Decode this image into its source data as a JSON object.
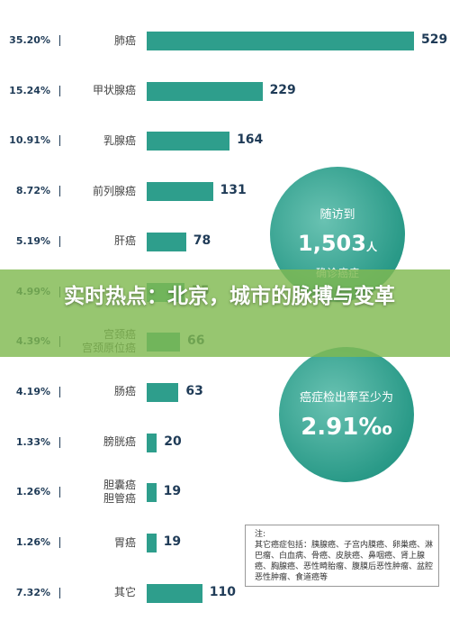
{
  "chart_data": {
    "type": "bar",
    "categories": [
      "肺癌",
      "甲状腺癌",
      "乳腺癌",
      "前列腺癌",
      "肝癌",
      null,
      "宫颈癌\n宫颈原位癌",
      "肠癌",
      "膀胱癌",
      "胆囊癌\n胆管癌",
      "胃癌",
      "其它"
    ],
    "share_labels": [
      "35.20%",
      "15.24%",
      "10.91%",
      "8.72%",
      "5.19%",
      "4.99%",
      "4.39%",
      "4.19%",
      "1.33%",
      "1.26%",
      "1.26%",
      "7.32%"
    ],
    "values": [
      529,
      229,
      164,
      131,
      78,
      75,
      66,
      63,
      20,
      19,
      19,
      110
    ],
    "color": "#2e9e8c"
  },
  "circles": [
    {
      "caption": "随访到",
      "figure": "1,503",
      "unit": "人",
      "footer": "确诊癌症"
    },
    {
      "caption": "癌症检出率至少为",
      "figure": "2.91‰"
    }
  ],
  "note": {
    "title": "注:",
    "text": "其它癌症包括：胰腺癌、子宫内膜癌、卵巢癌、淋巴瘤、白血病、骨癌、皮肤癌、鼻咽癌、肾上腺癌、胸腺癌、恶性畸胎瘤、腹膜后恶性肿瘤、盆腔恶性肿瘤、食道癌等"
  },
  "banner": {
    "title": "实时热点：北京，城市的脉搏与变革"
  }
}
